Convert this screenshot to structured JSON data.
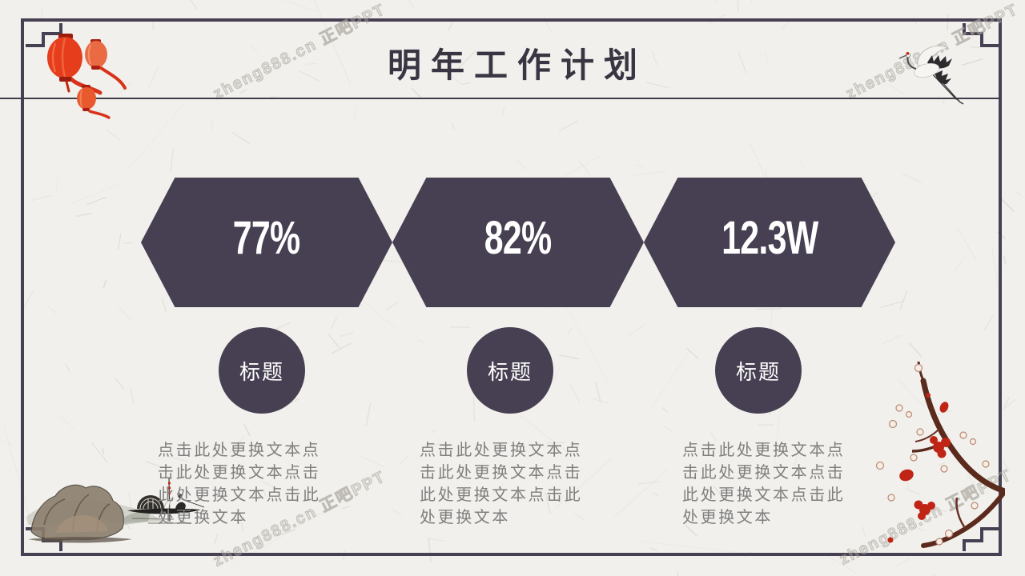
{
  "slide": {
    "title": "明年工作计划",
    "watermark_text": "zheng888.cn 正吧PPT",
    "columns": [
      {
        "value": "77%",
        "label": "标题",
        "body": "点击此处更换文本点击此处更换文本点击此处更换文本点击此处更换文本"
      },
      {
        "value": "82%",
        "label": "标题",
        "body": "点击此处更换文本点击此处更换文本点击此处更换文本点击此处更换文本"
      },
      {
        "value": "12.3W",
        "label": "标题",
        "body": "点击此处更换文本点击此处更换文本点击此处更换文本点击此处更换文本"
      }
    ],
    "colors": {
      "accent": "#473F52",
      "background": "#F1F0EC",
      "body_text": "#7F7F7F",
      "title_text": "#3A3542",
      "watermark": "#C9C6BD",
      "lantern_red": "#E8431F",
      "plum_red": "#BF2415"
    },
    "decorations": {
      "top_left": "red-lanterns",
      "top_right": "flying-crane",
      "bottom_left": "ink-landscape-fishing-boat",
      "bottom_right": "plum-blossom-branch",
      "frame": "chinese-border-frame",
      "texture": "rice-paper-fibers"
    }
  }
}
